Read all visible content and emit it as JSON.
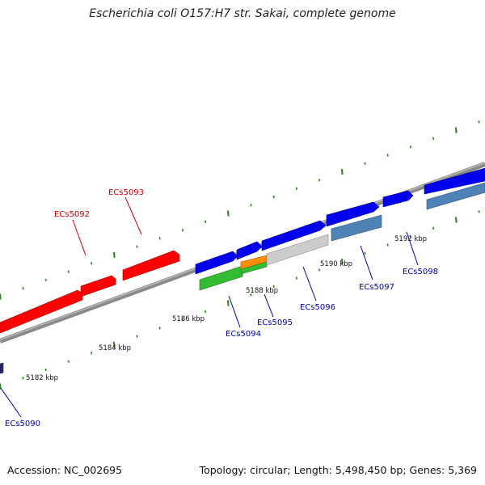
{
  "title": "Escherichia coli O157:H7 str. Sakai, complete genome",
  "footer": {
    "accession": "Accession: NC_002695",
    "summary": "Topology: circular; Length: 5,498,450 bp; Genes: 5,369"
  },
  "colors": {
    "backbone": "#808080",
    "tick": "#2e7d1e",
    "reverse_gene": "#ff0000",
    "forward_gene": "#0000ee",
    "forward_label": "#0000aa",
    "reverse_label": "#cc0000",
    "steelblue_gene": "#4f83b8",
    "gray_gene": "#c8c8c8",
    "green_gene": "#33bb33",
    "orange_gene": "#ff8c00"
  },
  "map": {
    "visible_range_kbp": [
      5180,
      5194
    ],
    "scale_labels": [
      {
        "kbp": 5182,
        "text": "5182 kbp"
      },
      {
        "kbp": 5184,
        "text": "5184 kbp"
      },
      {
        "kbp": 5186,
        "text": "5186 kbp"
      },
      {
        "kbp": 5188,
        "text": "5188 kbp"
      },
      {
        "kbp": 5190,
        "text": "5190 kbp"
      },
      {
        "kbp": 5192,
        "text": "5192 kbp"
      }
    ],
    "gene_labels": [
      {
        "id": "ECs5090",
        "strand": "forward"
      },
      {
        "id": "ECs5092",
        "strand": "reverse"
      },
      {
        "id": "ECs5093",
        "strand": "reverse"
      },
      {
        "id": "ECs5094",
        "strand": "forward"
      },
      {
        "id": "ECs5095",
        "strand": "forward"
      },
      {
        "id": "ECs5096",
        "strand": "forward"
      },
      {
        "id": "ECs5097",
        "strand": "forward"
      },
      {
        "id": "ECs5098",
        "strand": "forward"
      }
    ]
  }
}
